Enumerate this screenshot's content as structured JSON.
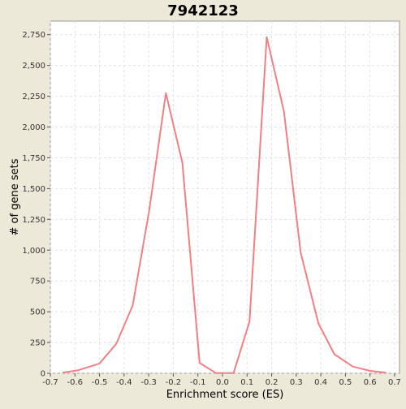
{
  "chart_data": {
    "type": "line",
    "title": "7942123",
    "xlabel": "Enrichment score (ES)",
    "ylabel": "# of gene sets",
    "xlim": [
      -0.7,
      0.72
    ],
    "ylim": [
      0,
      2860
    ],
    "x_ticks": [
      -0.7,
      -0.6,
      -0.5,
      -0.4,
      -0.3,
      -0.2,
      -0.1,
      0.0,
      0.1,
      0.2,
      0.3,
      0.4,
      0.5,
      0.6,
      0.7
    ],
    "x_tick_labels": [
      "-0.7",
      "-0.6",
      "-0.5",
      "-0.4",
      "-0.3",
      "-0.2",
      "-0.1",
      "0.0",
      "0.1",
      "0.2",
      "0.3",
      "0.4",
      "0.5",
      "0.6",
      "0.7"
    ],
    "y_ticks": [
      0,
      250,
      500,
      750,
      1000,
      1250,
      1500,
      1750,
      2000,
      2250,
      2500,
      2750
    ],
    "y_tick_labels": [
      "0",
      "250",
      "500",
      "750",
      "1,000",
      "1,250",
      "1,500",
      "1,750",
      "2,000",
      "2,250",
      "2,500",
      "2,750"
    ],
    "grid": true,
    "background": "#ffffff",
    "page_background": "#ece9d8",
    "line_color": "#f07f86",
    "series": [
      {
        "x": [
          -0.65,
          -0.586,
          -0.5,
          -0.432,
          -0.365,
          -0.298,
          -0.23,
          -0.163,
          -0.093,
          -0.027,
          0.045,
          0.11,
          0.18,
          0.25,
          0.318,
          0.39,
          0.455,
          0.53,
          0.6,
          0.665
        ],
        "y": [
          5,
          25,
          80,
          240,
          550,
          1320,
          2275,
          1710,
          85,
          2,
          2,
          420,
          2730,
          2125,
          980,
          405,
          155,
          55,
          20,
          5
        ]
      }
    ]
  }
}
